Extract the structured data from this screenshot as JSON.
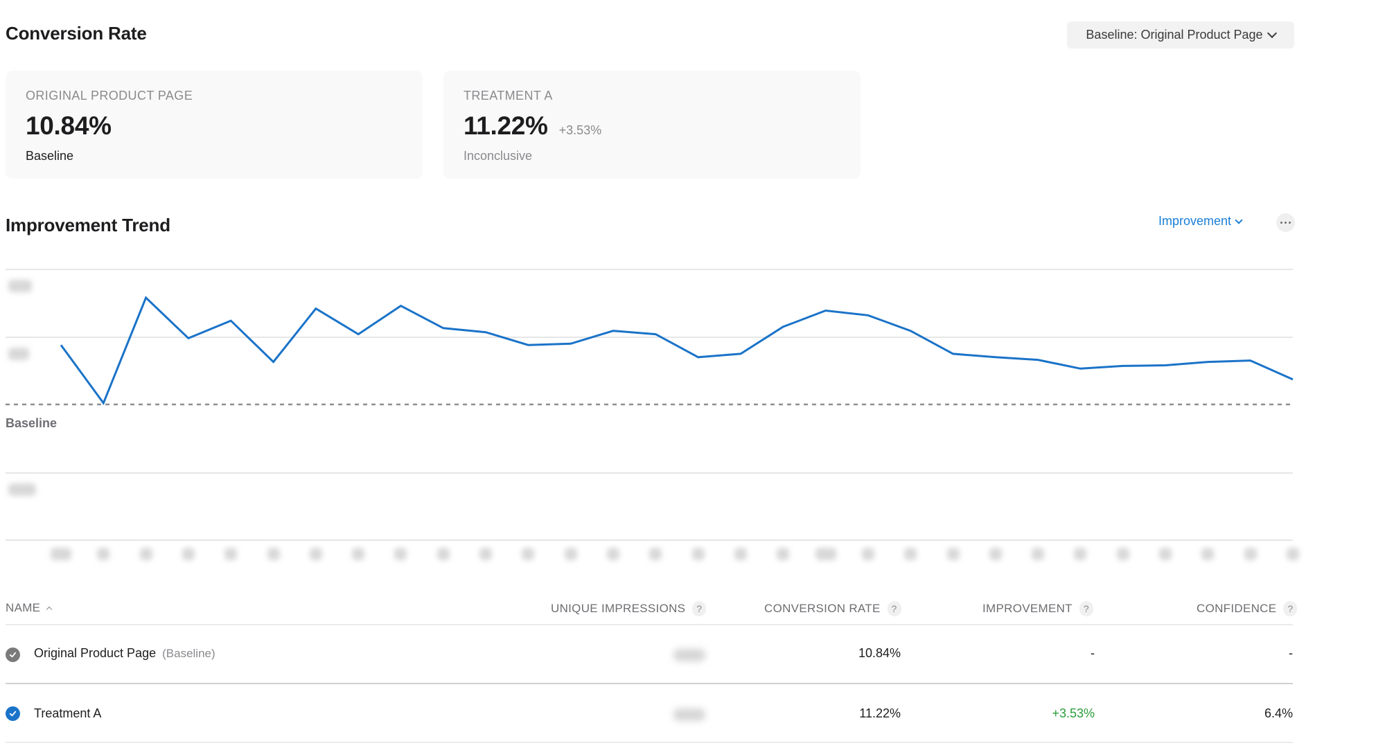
{
  "conversion_rate": {
    "title": "Conversion Rate",
    "baseline_selector": {
      "label": "Baseline: Original Product Page",
      "icon": "chevron-down-icon"
    },
    "cards": [
      {
        "label": "ORIGINAL PRODUCT PAGE",
        "value": "10.84%",
        "delta": "",
        "status": "Baseline",
        "status_color": "#1d1d1f"
      },
      {
        "label": "TREATMENT A",
        "value": "11.22%",
        "delta": "+3.53%",
        "status": "Inconclusive",
        "status_color": "#8a8a8e"
      }
    ]
  },
  "improvement_trend": {
    "title": "Improvement Trend",
    "metric_dropdown": {
      "label": "Improvement",
      "icon": "chevron-down-icon"
    },
    "more_button": {
      "icon": "more-horizontal-icon"
    },
    "baseline_label": "Baseline"
  },
  "chart_data": {
    "type": "line",
    "title": "Improvement Trend",
    "xlabel": "",
    "ylabel": "",
    "note": "Axis tick labels are blurred/redacted in the source; values below are relative pixel-derived positions (0 = baseline, gridline step = 1 unit).",
    "grid": true,
    "reference_line": {
      "name": "Baseline",
      "value": 0,
      "style": "dashed"
    },
    "ylim": [
      -2,
      2
    ],
    "series": [
      {
        "name": "Treatment A",
        "color": "#1a73c8",
        "values": [
          0.88,
          0.02,
          1.58,
          0.98,
          1.24,
          0.63,
          1.42,
          1.04,
          1.46,
          1.13,
          1.07,
          0.88,
          0.9,
          1.09,
          1.04,
          0.7,
          0.75,
          1.15,
          1.39,
          1.32,
          1.09,
          0.75,
          0.7,
          0.66,
          0.53,
          0.57,
          0.58,
          0.63,
          0.65,
          0.37
        ]
      }
    ],
    "categories": [
      "1",
      "2",
      "3",
      "4",
      "5",
      "6",
      "7",
      "8",
      "9",
      "10",
      "11",
      "12",
      "13",
      "14",
      "15",
      "16",
      "17",
      "18",
      "19",
      "20",
      "21",
      "22",
      "23",
      "24",
      "25",
      "26",
      "27",
      "28",
      "29",
      "30"
    ]
  },
  "table": {
    "columns": [
      {
        "label": "NAME",
        "sort": "ascending"
      },
      {
        "label": "UNIQUE IMPRESSIONS",
        "help": "?"
      },
      {
        "label": "CONVERSION RATE",
        "help": "?"
      },
      {
        "label": "IMPROVEMENT",
        "help": "?"
      },
      {
        "label": "CONFIDENCE",
        "help": "?"
      }
    ],
    "rows": [
      {
        "name": "Original Product Page",
        "tag": "(Baseline)",
        "selected_color": "#7a7a7a",
        "impressions": "",
        "conversion_rate": "10.84%",
        "improvement": "-",
        "improvement_color": "#1d1d1f",
        "confidence": "-"
      },
      {
        "name": "Treatment A",
        "tag": "",
        "selected_color": "#1a73c8",
        "impressions": "",
        "conversion_rate": "11.22%",
        "improvement": "+3.53%",
        "improvement_color": "#2a9d3a",
        "confidence": "6.4%"
      }
    ]
  },
  "colors": {
    "accent": "#1a7ed6",
    "line": "#1a73c8",
    "positive": "#2a9d3a",
    "card_bg": "#f9f9f9"
  }
}
